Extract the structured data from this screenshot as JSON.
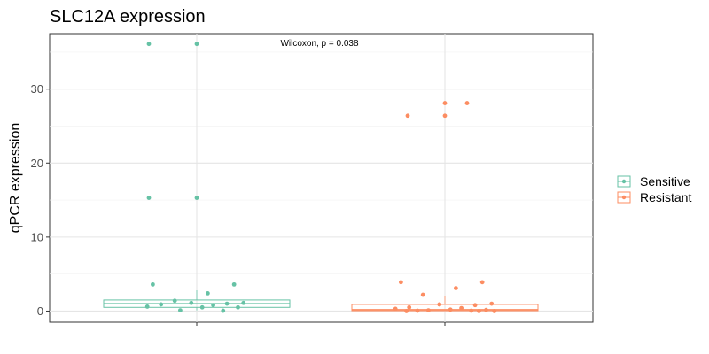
{
  "chart_data": {
    "type": "box",
    "title": "SLC12A expression",
    "xlabel": "",
    "ylabel": "qPCR expression",
    "ylim": [
      -1.5,
      37.5
    ],
    "yticks": [
      0,
      10,
      20,
      30
    ],
    "grid": true,
    "legend_position": "right",
    "annotation": "Wilcoxon, p = 0.038",
    "groups": [
      {
        "name": "Sensitive",
        "color": "#66c2a5",
        "box": {
          "min": 0.1,
          "q1": 0.5,
          "median": 1.0,
          "q3": 1.5,
          "max": 2.8
        },
        "points": [
          36.1,
          36.1,
          15.3,
          15.3,
          3.6,
          3.6,
          2.4,
          1.4,
          1.1,
          1.1,
          1.0,
          0.9,
          0.8,
          0.6,
          0.5,
          0.5,
          0.1,
          0.05
        ]
      },
      {
        "name": "Resistant",
        "color": "#fc8d62",
        "box": {
          "min": 0.0,
          "q1": 0.05,
          "median": 0.2,
          "q3": 0.9,
          "max": 2.0
        },
        "points": [
          28.1,
          28.1,
          26.4,
          26.4,
          3.9,
          3.9,
          3.1,
          2.2,
          1.0,
          0.9,
          0.8,
          0.5,
          0.4,
          0.3,
          0.2,
          0.15,
          0.1,
          0.05,
          0.05,
          0.0,
          0.0,
          0.0
        ]
      }
    ]
  }
}
